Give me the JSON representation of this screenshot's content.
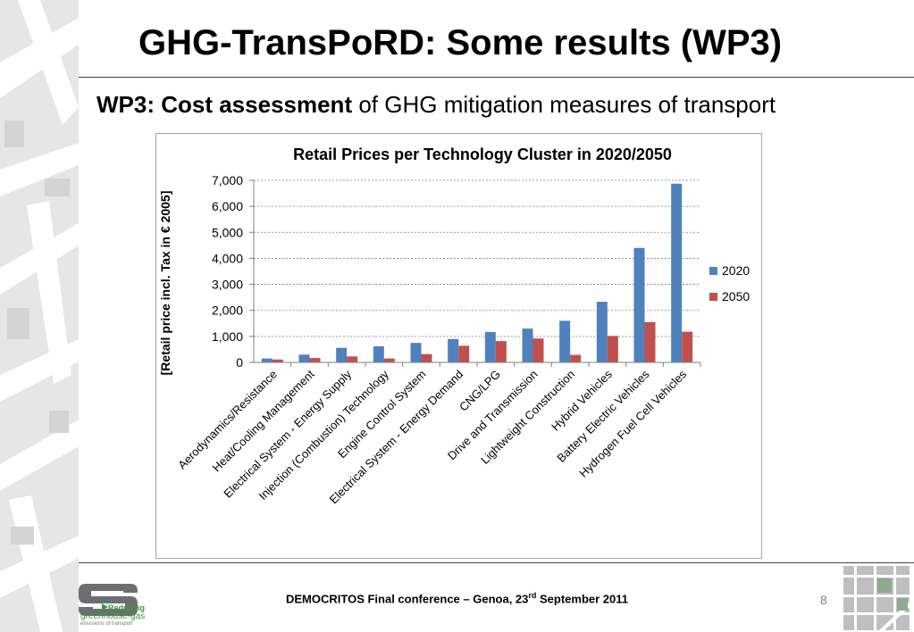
{
  "slide": {
    "title": "GHG-TransPoRD: Some results (WP3)",
    "subtitle_bold": "WP3: Cost assessment",
    "subtitle_rest": " of GHG mitigation measures of transport",
    "footer_main": "DEMOCRITOS Final conference – Genoa, 23",
    "footer_sup": "rd",
    "footer_end": " September 2011",
    "page_number": "8",
    "logo_line1": "Reducing",
    "logo_line2": "greenhouse-gas",
    "logo_line3": "emissions of transport"
  },
  "colors": {
    "series_2020": "#4f81bd",
    "series_2050": "#c0504d",
    "accent_green": "#3a9a3a"
  },
  "chart_data": {
    "type": "bar",
    "title": "Retail Prices per Technology Cluster in 2020/2050",
    "ylabel": "[Retail price incl. Tax in € 2005]",
    "xlabel": "",
    "ylim": [
      0,
      7000
    ],
    "yticks": [
      "0",
      "1,000",
      "2,000",
      "3,000",
      "4,000",
      "5,000",
      "6,000",
      "7,000"
    ],
    "ytick_values": [
      0,
      1000,
      2000,
      3000,
      4000,
      5000,
      6000,
      7000
    ],
    "grid": true,
    "legend_position": "right",
    "categories": [
      "Aerodynamics/Resistance",
      "Heat/Cooling Management",
      "Electrical System - Energy Supply",
      "Injection (Combustion) Technology",
      "Engine Control System",
      "Electrical System - Energy Demand",
      "CNG/LPG",
      "Drive and Transmission",
      "Lightweight Construction",
      "Hybrid Vehicles",
      "Battery Electric Vehicles",
      "Hydrogen Fuel Cell Vehicles"
    ],
    "series": [
      {
        "name": "2020",
        "values": [
          150,
          300,
          560,
          620,
          750,
          900,
          1170,
          1300,
          1600,
          2330,
          4400,
          6870
        ]
      },
      {
        "name": "2050",
        "values": [
          110,
          170,
          230,
          150,
          320,
          640,
          820,
          920,
          290,
          1020,
          1550,
          1180
        ]
      }
    ]
  }
}
